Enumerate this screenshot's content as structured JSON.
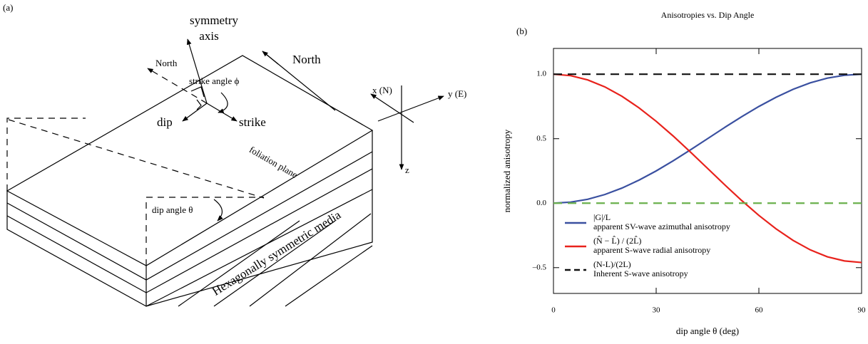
{
  "panel_a": {
    "label": "(a)",
    "symmetry_axis": [
      "symmetry",
      "axis"
    ],
    "north_small": "North",
    "strike_angle": "strike angle ϕ",
    "north_big": "North",
    "dip": "dip",
    "strike": "strike",
    "x_axis": "x (N)",
    "y_axis": "y (E)",
    "z_axis": "z",
    "foliation": "foliation plane",
    "dip_angle": "dip angle θ",
    "media": "Hexagonally symmetric media"
  },
  "chart_data": {
    "type": "line",
    "panel_label": "(b)",
    "title": "Anisotropies vs. Dip Angle",
    "xlabel": "dip angle θ (deg)",
    "ylabel": "normalized anisotropy",
    "xlim": [
      0,
      90
    ],
    "xticks": [
      0,
      30,
      60,
      90
    ],
    "ylim": [
      -0.7,
      1.2
    ],
    "yticks": [
      {
        "value": 1.0,
        "label": "1.0"
      },
      0.5,
      {
        "value": 0,
        "label": "0.0"
      },
      {
        "value": -0.5,
        "label": "–0.5"
      }
    ],
    "x": [
      0,
      5,
      10,
      15,
      20,
      25,
      30,
      35,
      40,
      45,
      50,
      55,
      60,
      65,
      70,
      75,
      80,
      85,
      90
    ],
    "series": [
      {
        "name": "|G|/L",
        "description": "apparent SV-wave azimuthal anisotropy",
        "color": "#3a50a0",
        "dash": false,
        "values": [
          0,
          0.008,
          0.03,
          0.067,
          0.117,
          0.179,
          0.25,
          0.329,
          0.413,
          0.5,
          0.587,
          0.671,
          0.75,
          0.821,
          0.883,
          0.933,
          0.97,
          0.992,
          1.0
        ]
      },
      {
        "name": "(N̂ − L̂) / (2L̂)",
        "description": "apparent S-wave radial anisotropy",
        "color": "#e8221c",
        "dash": false,
        "values": [
          1.0,
          0.989,
          0.956,
          0.902,
          0.829,
          0.739,
          0.635,
          0.52,
          0.397,
          0.27,
          0.143,
          0.02,
          -0.095,
          -0.199,
          -0.289,
          -0.362,
          -0.416,
          -0.448,
          -0.46
        ]
      },
      {
        "name": "(N-L)/(2L)",
        "description": "Inherent S-wave anisotropy",
        "color": "#111111",
        "dash": true,
        "values": [
          1,
          1,
          1,
          1,
          1,
          1,
          1,
          1,
          1,
          1,
          1,
          1,
          1,
          1,
          1,
          1,
          1,
          1,
          1
        ]
      },
      {
        "color": "#6ab04c",
        "dash": true,
        "values": [
          0,
          0,
          0,
          0,
          0,
          0,
          0,
          0,
          0,
          0,
          0,
          0,
          0,
          0,
          0,
          0,
          0,
          0,
          0
        ]
      }
    ]
  }
}
